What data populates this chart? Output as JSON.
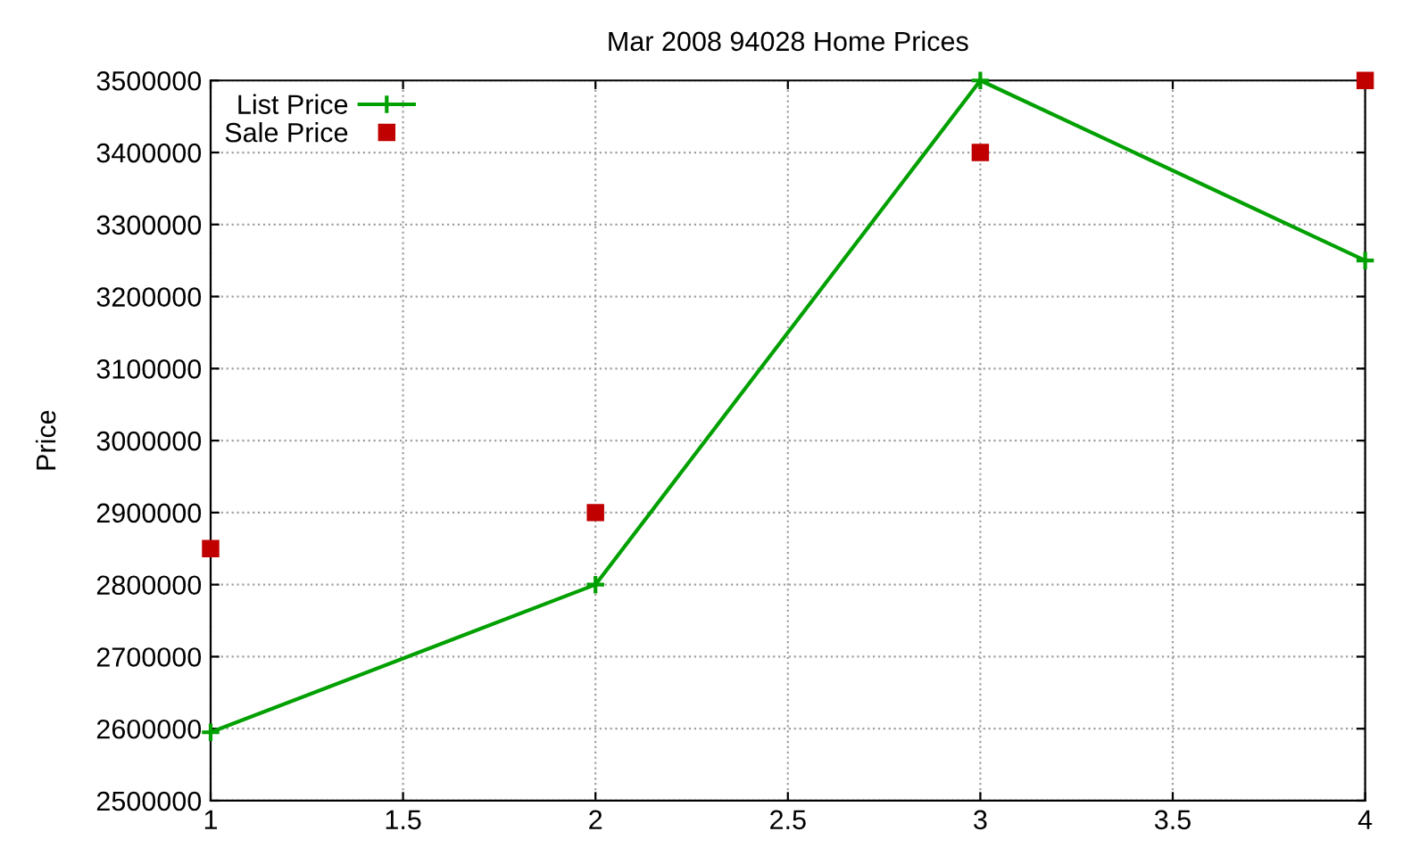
{
  "chart_data": {
    "type": "line",
    "title": "Mar 2008 94028 Home Prices",
    "ylabel": "Price",
    "x": [
      1,
      2,
      3,
      4
    ],
    "series": [
      {
        "name": "List Price",
        "color": "#00a000",
        "marker": "cross",
        "line_style": "solid",
        "values": [
          2595000,
          2800000,
          3500000,
          3250000
        ]
      },
      {
        "name": "Sale Price",
        "type": "scatter",
        "color": "#c00000",
        "marker": "square",
        "values": [
          2850000,
          2900000,
          3400000,
          3500000
        ]
      }
    ],
    "xlim": [
      1,
      4
    ],
    "xticks": [
      1,
      1.5,
      2,
      2.5,
      3,
      3.5,
      4
    ],
    "ylim": [
      2500000,
      3500000
    ],
    "yticks": [
      2500000,
      2600000,
      2700000,
      2800000,
      2900000,
      3000000,
      3100000,
      3200000,
      3300000,
      3400000,
      3500000
    ],
    "grid": true,
    "legend": "top left"
  }
}
